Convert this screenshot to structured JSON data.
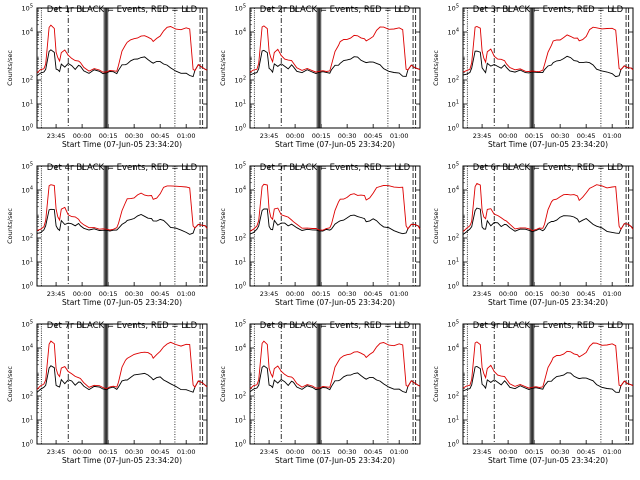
{
  "x_axis_label": "Start Time (07-Jun-05 23:34:20)",
  "y_axis_label": "Counts/sec",
  "x_tick_labels": [
    "23:45",
    "00:00",
    "00:15",
    "00:30",
    "00:45",
    "01:00"
  ],
  "y_tick_labels": [
    {
      "base": "10",
      "exp": "0"
    },
    {
      "base": "10",
      "exp": "1"
    },
    {
      "base": "10",
      "exp": "2"
    },
    {
      "base": "10",
      "exp": "4"
    },
    {
      "base": "10",
      "exp": "5"
    }
  ],
  "colors": {
    "events": "#000000",
    "lld": "#dd0000"
  },
  "chart_data": [
    {
      "type": "line",
      "title": "Det 1r BLACK = Events, RED = LLD",
      "xlabel": "Start Time (07-Jun-05 23:34:20)",
      "ylabel": "Counts/sec",
      "ylim": [
        1,
        100000
      ],
      "yscale": "log",
      "xlim_minutes_after_start": [
        0,
        98
      ]
    },
    {
      "type": "line",
      "title": "Det 2r BLACK = Events, RED = LLD",
      "xlabel": "Start Time (07-Jun-05 23:34:20)",
      "ylabel": "Counts/sec",
      "ylim": [
        1,
        100000
      ],
      "yscale": "log"
    },
    {
      "type": "line",
      "title": "Det 3r BLACK = Events, RED = LLD",
      "xlabel": "Start Time (07-Jun-05 23:34:20)",
      "ylabel": "Counts/sec",
      "ylim": [
        1,
        100000
      ],
      "yscale": "log"
    },
    {
      "type": "line",
      "title": "Det 4r BLACK = Events, RED = LLD",
      "xlabel": "Start Time (07-Jun-05 23:34:20)",
      "ylabel": "Counts/sec",
      "ylim": [
        1,
        100000
      ],
      "yscale": "log"
    },
    {
      "type": "line",
      "title": "Det 5r BLACK = Events, RED = LLD",
      "xlabel": "Start Time (07-Jun-05 23:34:20)",
      "ylabel": "Counts/sec",
      "ylim": [
        1,
        100000
      ],
      "yscale": "log"
    },
    {
      "type": "line",
      "title": "Det 6r BLACK = Events, RED = LLD",
      "xlabel": "Start Time (07-Jun-05 23:34:20)",
      "ylabel": "Counts/sec",
      "ylim": [
        1,
        100000
      ],
      "yscale": "log"
    },
    {
      "type": "line",
      "title": "Det 7r BLACK = Events, RED = LLD",
      "xlabel": "Start Time (07-Jun-05 23:34:20)",
      "ylabel": "Counts/sec",
      "ylim": [
        1,
        100000
      ],
      "yscale": "log"
    },
    {
      "type": "line",
      "title": "Det 8r BLACK = Events, RED = LLD",
      "xlabel": "Start Time (07-Jun-05 23:34:20)",
      "ylabel": "Counts/sec",
      "ylim": [
        1,
        100000
      ],
      "yscale": "log"
    },
    {
      "type": "line",
      "title": "Det 9r BLACK = Events, RED = LLD",
      "xlabel": "Start Time (07-Jun-05 23:34:20)",
      "ylabel": "Counts/sec",
      "ylim": [
        1,
        100000
      ],
      "yscale": "log"
    }
  ],
  "series_template": {
    "x_minutes_after_start": [
      0,
      2,
      4,
      5,
      7,
      8,
      10,
      11,
      12,
      13,
      14,
      16,
      18,
      20,
      22,
      24,
      25,
      27,
      30,
      33,
      36,
      38,
      40,
      42,
      44,
      46,
      47,
      49,
      51,
      52,
      54,
      56,
      58,
      60,
      62,
      64,
      66,
      67,
      69,
      71,
      73,
      75,
      77,
      80,
      83,
      86,
      88,
      90,
      91,
      93,
      95,
      97,
      98
    ],
    "events": [
      150,
      180,
      220,
      300,
      1500,
      1700,
      1500,
      300,
      250,
      220,
      500,
      350,
      450,
      400,
      300,
      400,
      350,
      250,
      200,
      250,
      220,
      200,
      200,
      210,
      220,
      200,
      250,
      400,
      450,
      500,
      600,
      700,
      800,
      900,
      850,
      700,
      600,
      500,
      550,
      600,
      500,
      400,
      300,
      250,
      200,
      180,
      150,
      150,
      250,
      400,
      350,
      300,
      250
    ],
    "lld": [
      200,
      250,
      300,
      500,
      15000,
      18000,
      15000,
      1500,
      800,
      600,
      1500,
      1800,
      1000,
      800,
      700,
      600,
      500,
      350,
      250,
      280,
      250,
      230,
      220,
      230,
      240,
      250,
      400,
      1500,
      3000,
      4000,
      4500,
      5000,
      6000,
      7000,
      6500,
      6000,
      5500,
      4000,
      5000,
      7000,
      12000,
      15000,
      16000,
      14000,
      13000,
      14000,
      13000,
      300,
      250,
      400,
      350,
      300,
      250
    ]
  }
}
